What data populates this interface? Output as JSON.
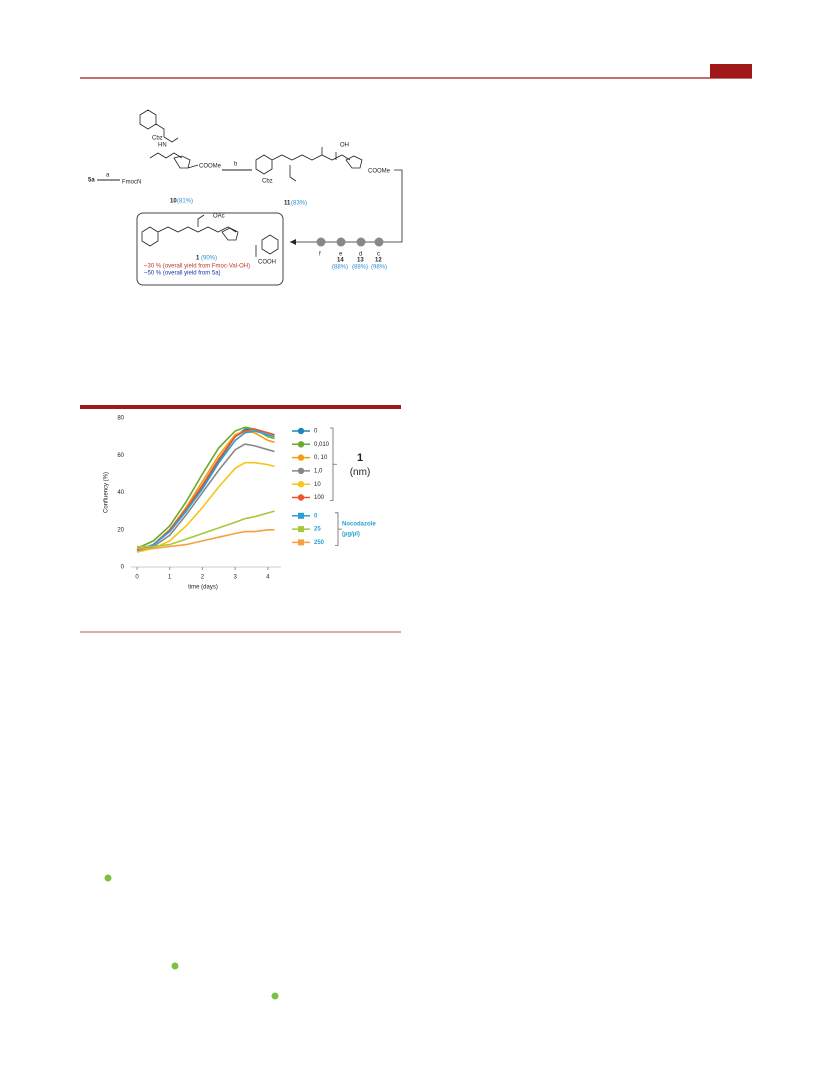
{
  "scheme": {
    "start": "5a",
    "step_a": "a",
    "step_b": "b",
    "fmoc": "FmocN",
    "cbz_top": "Cbz",
    "hn": "HN",
    "coome_10": "COOMe",
    "cpd10": "10",
    "yield10": "(81%)",
    "cbz_11": "Cbz",
    "oh": "OH",
    "coome_11": "COOMe",
    "cpd11": "11",
    "yield11": "(83%)",
    "steps": [
      "f",
      "e",
      "d",
      "c"
    ],
    "intermediates": [
      "14",
      "13",
      "12"
    ],
    "yields": [
      "(88%)",
      "(88%)",
      "(98%)"
    ],
    "oac": "OAc",
    "cooh": "COOH",
    "cpd1": "1",
    "yield1": "(90%)",
    "overall1": "~30 % (overall yield from Fmoc-Val-OH)",
    "overall2": "~50 % (overall yield from 5a)"
  },
  "chart_data": {
    "type": "line",
    "xlabel": "time (days)",
    "ylabel": "Confluency (%)",
    "x": [
      0,
      0.5,
      1,
      1.5,
      2,
      2.5,
      3,
      3.3,
      3.6,
      4,
      4.2
    ],
    "xlim": [
      0,
      4.4
    ],
    "xticks": [
      0,
      1,
      2,
      3,
      4
    ],
    "ylim": [
      0,
      80
    ],
    "yticks": [
      0,
      20,
      40,
      60,
      80
    ],
    "groups": [
      {
        "title": "1",
        "unit": "(nm)"
      },
      {
        "title": "Nocodazole",
        "unit": "(µg/µl)"
      }
    ],
    "series": [
      {
        "name": "0",
        "group": 0,
        "color": "#1f86b8",
        "values": [
          9,
          12,
          19,
          30,
          43,
          57,
          70,
          74,
          74,
          72,
          71
        ]
      },
      {
        "name": "0,010",
        "group": 0,
        "color": "#6aaa2a",
        "values": [
          10,
          14,
          22,
          35,
          50,
          64,
          73,
          75,
          74,
          70,
          69
        ]
      },
      {
        "name": "0, 10",
        "group": 0,
        "color": "#f39c12",
        "values": [
          9,
          12,
          20,
          32,
          46,
          60,
          71,
          73,
          72,
          68,
          67
        ]
      },
      {
        "name": "1,0",
        "group": 0,
        "color": "#888888",
        "values": [
          8,
          11,
          17,
          28,
          40,
          52,
          63,
          66,
          65,
          63,
          62
        ]
      },
      {
        "name": "10",
        "group": 0,
        "color": "#f5c518",
        "values": [
          8,
          10,
          14,
          22,
          32,
          43,
          53,
          56,
          56,
          55,
          54
        ]
      },
      {
        "name": "100",
        "group": 0,
        "color": "#f0522a",
        "values": [
          9,
          12,
          20,
          31,
          44,
          58,
          70,
          73,
          74,
          72,
          71
        ]
      },
      {
        "name": "0",
        "group": 1,
        "color": "#2a9fd6",
        "values": [
          9,
          12,
          19,
          30,
          42,
          56,
          68,
          72,
          73,
          71,
          70
        ]
      },
      {
        "name": "25",
        "group": 1,
        "color": "#a6c93a",
        "values": [
          11,
          11,
          12,
          15,
          18,
          21,
          24,
          26,
          27,
          29,
          30
        ]
      },
      {
        "name": "250",
        "group": 1,
        "color": "#f5a040",
        "values": [
          10,
          10,
          11,
          12,
          14,
          16,
          18,
          19,
          19,
          20,
          20
        ]
      }
    ]
  }
}
